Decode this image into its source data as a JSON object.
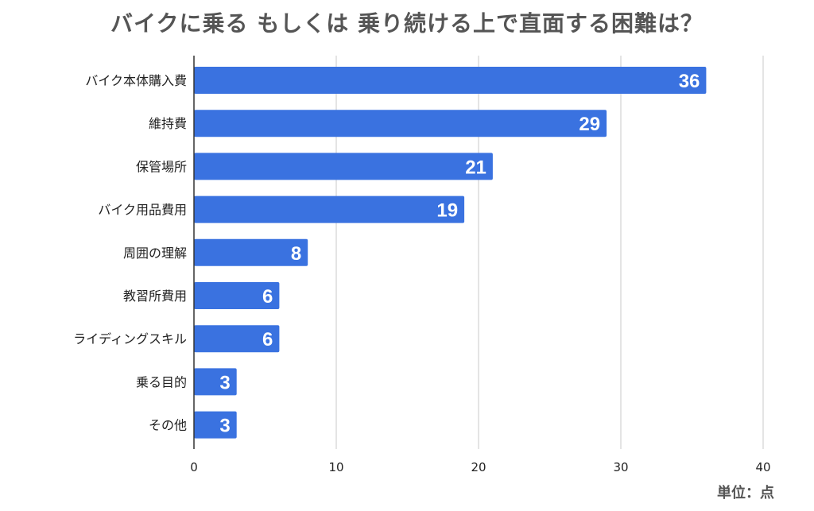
{
  "chart_data": {
    "type": "bar",
    "orientation": "horizontal",
    "title": "バイクに乗る もしくは 乗り続ける上で直面する困難は？",
    "categories": [
      "バイク本体購入費",
      "維持費",
      "保管場所",
      "バイク用品費用",
      "周囲の理解",
      "教習所費用",
      "ライディングスキル",
      "乗る目的",
      "その他"
    ],
    "values": [
      36,
      29,
      21,
      19,
      8,
      6,
      6,
      3,
      3
    ],
    "xlim": [
      0,
      40
    ],
    "x_ticks": [
      0,
      10,
      20,
      30,
      40
    ],
    "grid": true,
    "data_labels": true,
    "unit_note": "単位：点",
    "bar_color": "#3a72e0",
    "label_color": "#ffffff"
  }
}
